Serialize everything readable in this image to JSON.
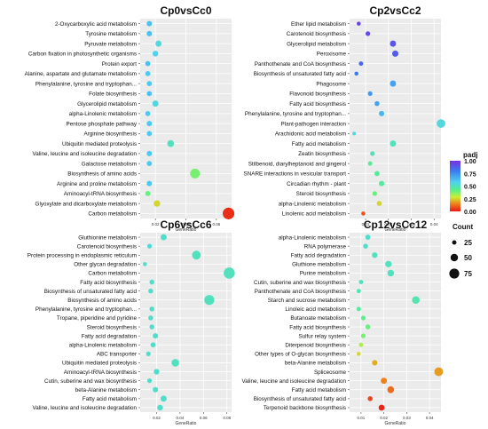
{
  "figure": {
    "color_scale": {
      "title": "padj",
      "ticks": [
        "1.00",
        "0.75",
        "0.50",
        "0.25",
        "0.00"
      ],
      "colors_top_to_bottom": [
        "#7b2fe0",
        "#3a7bf0",
        "#4fd1f0",
        "#57f08a",
        "#ccee33",
        "#f07a1a",
        "#e81818"
      ]
    },
    "size_scale": {
      "title": "Count",
      "labels": [
        "25",
        "50",
        "75"
      ]
    }
  },
  "chart_data": [
    {
      "type": "scatter",
      "title": "Cp0vsCc0",
      "xlabel": "GeneRatio",
      "xlim": [
        0.01,
        0.07
      ],
      "xticks": [
        0.02,
        0.04,
        0.06
      ],
      "xtick_labels": [
        "0.02",
        "0.04",
        "0.06"
      ],
      "categories": [
        "2-Oxycarboxylic acid metabolism",
        "Tyrosine metabolism",
        "Pyruvate metabolism",
        "Carbon fixation in photosynthetic organisms",
        "Protein export",
        "Alanine, aspartate and glutamate metabolism",
        "Phenylalanine, tyrosine and tryptophan...",
        "Folate biosynthesis",
        "Glycerolipid metabolism",
        "alpha-Linolenic metabolism",
        "Pentose phosphate pathway",
        "Arginine biosynthesis",
        "Ubiquitin mediated proteolysis",
        "Valine, leucine and isoleucine degradation",
        "Galactose metabolism",
        "Biosynthesis of amino acids",
        "Arginine and proline metabolism",
        "Aminoacyl-tRNA biosynthesis",
        "Glyoxylate and dicarboxylate metabolism",
        "Carbon metabolism"
      ],
      "gene_ratio": [
        0.016,
        0.016,
        0.022,
        0.02,
        0.015,
        0.015,
        0.016,
        0.016,
        0.02,
        0.015,
        0.016,
        0.016,
        0.03,
        0.016,
        0.016,
        0.046,
        0.016,
        0.015,
        0.021,
        0.068
      ],
      "padj": [
        0.62,
        0.62,
        0.55,
        0.58,
        0.62,
        0.6,
        0.6,
        0.62,
        0.55,
        0.6,
        0.6,
        0.6,
        0.5,
        0.6,
        0.6,
        0.38,
        0.6,
        0.4,
        0.25,
        0.03
      ],
      "count": [
        8,
        8,
        12,
        10,
        7,
        7,
        7,
        7,
        12,
        7,
        8,
        7,
        16,
        8,
        7,
        42,
        8,
        7,
        14,
        65
      ]
    },
    {
      "type": "scatter",
      "title": "Cp2vsCc2",
      "xlabel": "GeneRatio",
      "xlim": [
        0.003,
        0.043
      ],
      "xticks": [
        0.01,
        0.02,
        0.03,
        0.04
      ],
      "xtick_labels": [
        "0.01",
        "0.02",
        "0.03",
        "0.04"
      ],
      "categories": [
        "Ether lipid metabolism",
        "Carotenoid biosynthesis",
        "Glycerolipid metabolism",
        "Peroxisome",
        "Panthothenate and CoA biosynthesis",
        "Biosynthesis of unsaturated fatty acid",
        "Phagosome",
        "Flavonoid biosynthesis",
        "Fatty acid biosynthesis",
        "Phenylalanine, tyrosine and tryptophan...",
        "Plant-pathogen interaction",
        "Arachidonic acid metabolism",
        "Fatty acid metabolism",
        "Zeatin biosynthesis",
        "Stilbenoid, diarylheptanoid and gingerol",
        "SNARE interactions in vesicular transport",
        "Circadian rhythm - plant",
        "Steroid biosynthesis",
        "alpha-Linolenic metabolism",
        "Linolenic acid metabolism"
      ],
      "gene_ratio": [
        0.007,
        0.011,
        0.022,
        0.023,
        0.008,
        0.006,
        0.022,
        0.012,
        0.015,
        0.017,
        0.043,
        0.005,
        0.022,
        0.013,
        0.012,
        0.015,
        0.017,
        0.014,
        0.016,
        0.009
      ],
      "padj": [
        0.95,
        0.92,
        0.9,
        0.88,
        0.85,
        0.8,
        0.7,
        0.72,
        0.7,
        0.65,
        0.55,
        0.55,
        0.5,
        0.5,
        0.45,
        0.45,
        0.45,
        0.4,
        0.25,
        0.08
      ],
      "count": [
        3,
        5,
        12,
        13,
        4,
        3,
        12,
        5,
        6,
        8,
        30,
        2,
        12,
        5,
        4,
        7,
        8,
        5,
        7,
        3
      ]
    },
    {
      "type": "scatter",
      "title": "Cp6vsCc6",
      "xlabel": "GeneRatio",
      "xlim": [
        0.006,
        0.084
      ],
      "xticks": [
        0.02,
        0.04,
        0.06,
        0.08
      ],
      "xtick_labels": [
        "0.02",
        "0.04",
        "0.06",
        "0.08"
      ],
      "categories": [
        "Gluthionine metabolism",
        "Carotenoid biosynthesis",
        "Protein processing in endoplasmic reticulum",
        "Other glycan degradation",
        "Carbon metabolism",
        "Fatty acid biosynthesis",
        "Biosynthesis of unsaturated fatty acid",
        "Biosynthesis of amino acids",
        "Phenylalanine, tyrosine and tryptophan...",
        "Tropane, piperidine and pyridine",
        "Steroid biosynthesis",
        "Fatty acid degradation",
        "alpha-Linolenic metabolism",
        "ABC transporter",
        "Ubiquitin mediated proteolysis",
        "Aminoacyl-tRNA biosynthesis",
        "Cutin, suberine and wax biosynthesis",
        "beta-Alanine metabolism",
        "Fatty acid metabolism",
        "Valine, leucine and isoleucine degradation"
      ],
      "gene_ratio": [
        0.026,
        0.014,
        0.054,
        0.01,
        0.082,
        0.016,
        0.015,
        0.065,
        0.016,
        0.015,
        0.016,
        0.019,
        0.017,
        0.013,
        0.036,
        0.02,
        0.014,
        0.019,
        0.026,
        0.023
      ],
      "padj": [
        0.52,
        0.55,
        0.5,
        0.52,
        0.5,
        0.52,
        0.52,
        0.5,
        0.52,
        0.52,
        0.52,
        0.52,
        0.52,
        0.52,
        0.5,
        0.52,
        0.52,
        0.52,
        0.52,
        0.52
      ],
      "count": [
        12,
        5,
        32,
        3,
        58,
        6,
        6,
        45,
        6,
        6,
        6,
        8,
        7,
        5,
        22,
        9,
        5,
        8,
        12,
        10
      ]
    },
    {
      "type": "scatter",
      "title": "Cp12vsCc12",
      "xlabel": "GeneRatio",
      "xlim": [
        0.005,
        0.045
      ],
      "xticks": [
        0.01,
        0.02,
        0.03,
        0.04
      ],
      "xtick_labels": [
        "0.01",
        "0.02",
        "0.03",
        "0.04"
      ],
      "categories": [
        "alpha-Linolenic metabolism",
        "RNA polymerase",
        "Fatty acid degradation",
        "Gluthione metabolism",
        "Purine metabolism",
        "Cutin, suberine and wax biosynthesis",
        "Panthothenate and CoA biosynthesis",
        "Starch and sucrose metabolism",
        "Linoleic acid metabolism",
        "Butanoate metabolism",
        "Fatty acid biosynthesis",
        "Sulfur relay system",
        "Diterpenoid biosynthesis",
        "Other types of O-glycan biosynthesis",
        "beta-Alanine metabolism",
        "Spliceosome",
        "Valine, leucine and isoleucine degradation",
        "Fatty acid metabolism",
        "Biosynthesis of unsaturated fatty acid",
        "Terpenoid backbone biosynthesis"
      ],
      "gene_ratio": [
        0.013,
        0.012,
        0.016,
        0.022,
        0.023,
        0.01,
        0.009,
        0.034,
        0.009,
        0.011,
        0.013,
        0.011,
        0.01,
        0.009,
        0.016,
        0.044,
        0.02,
        0.023,
        0.014,
        0.019
      ],
      "padj": [
        0.52,
        0.52,
        0.5,
        0.5,
        0.5,
        0.5,
        0.48,
        0.48,
        0.45,
        0.42,
        0.4,
        0.38,
        0.32,
        0.25,
        0.2,
        0.18,
        0.15,
        0.12,
        0.06,
        0.02
      ],
      "count": [
        7,
        6,
        9,
        14,
        15,
        4,
        4,
        22,
        4,
        5,
        6,
        5,
        4,
        3,
        8,
        32,
        12,
        16,
        6,
        11
      ]
    }
  ]
}
